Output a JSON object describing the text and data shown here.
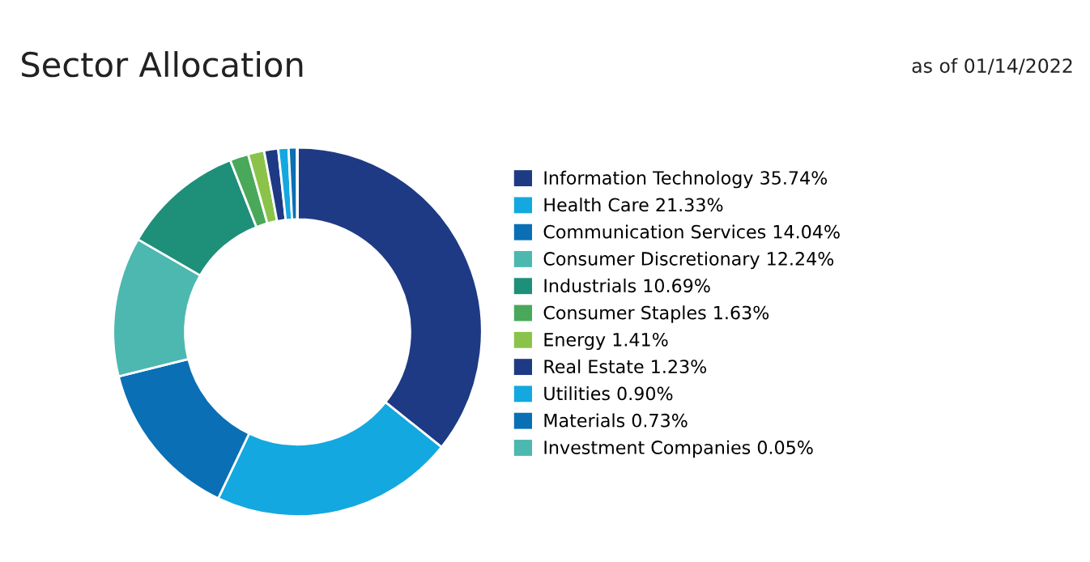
{
  "chart_data": {
    "type": "donut",
    "title": "Sector Allocation",
    "annotations": [
      "as of 01/14/2022"
    ],
    "categories": [
      "Information Technology",
      "Health Care",
      "Communication Services",
      "Consumer Discretionary",
      "Industrials",
      "Consumer Staples",
      "Energy",
      "Real Estate",
      "Utilities",
      "Materials",
      "Investment Companies"
    ],
    "values": [
      35.74,
      21.33,
      14.04,
      12.24,
      10.69,
      1.63,
      1.41,
      1.23,
      0.9,
      0.73,
      0.05
    ],
    "value_labels": [
      "35.74%",
      "21.33%",
      "14.04%",
      "12.24%",
      "10.69%",
      "1.63%",
      "1.41%",
      "1.23%",
      "0.90%",
      "0.73%",
      "0.05%"
    ],
    "colors": [
      "#1f3a84",
      "#13a8e0",
      "#0a6fb5",
      "#4db8b0",
      "#1e8f78",
      "#4aa85a",
      "#8bc34a",
      "#1f3a84",
      "#13a8e0",
      "#0a6fb5",
      "#4db8b0"
    ],
    "legend": "right"
  }
}
